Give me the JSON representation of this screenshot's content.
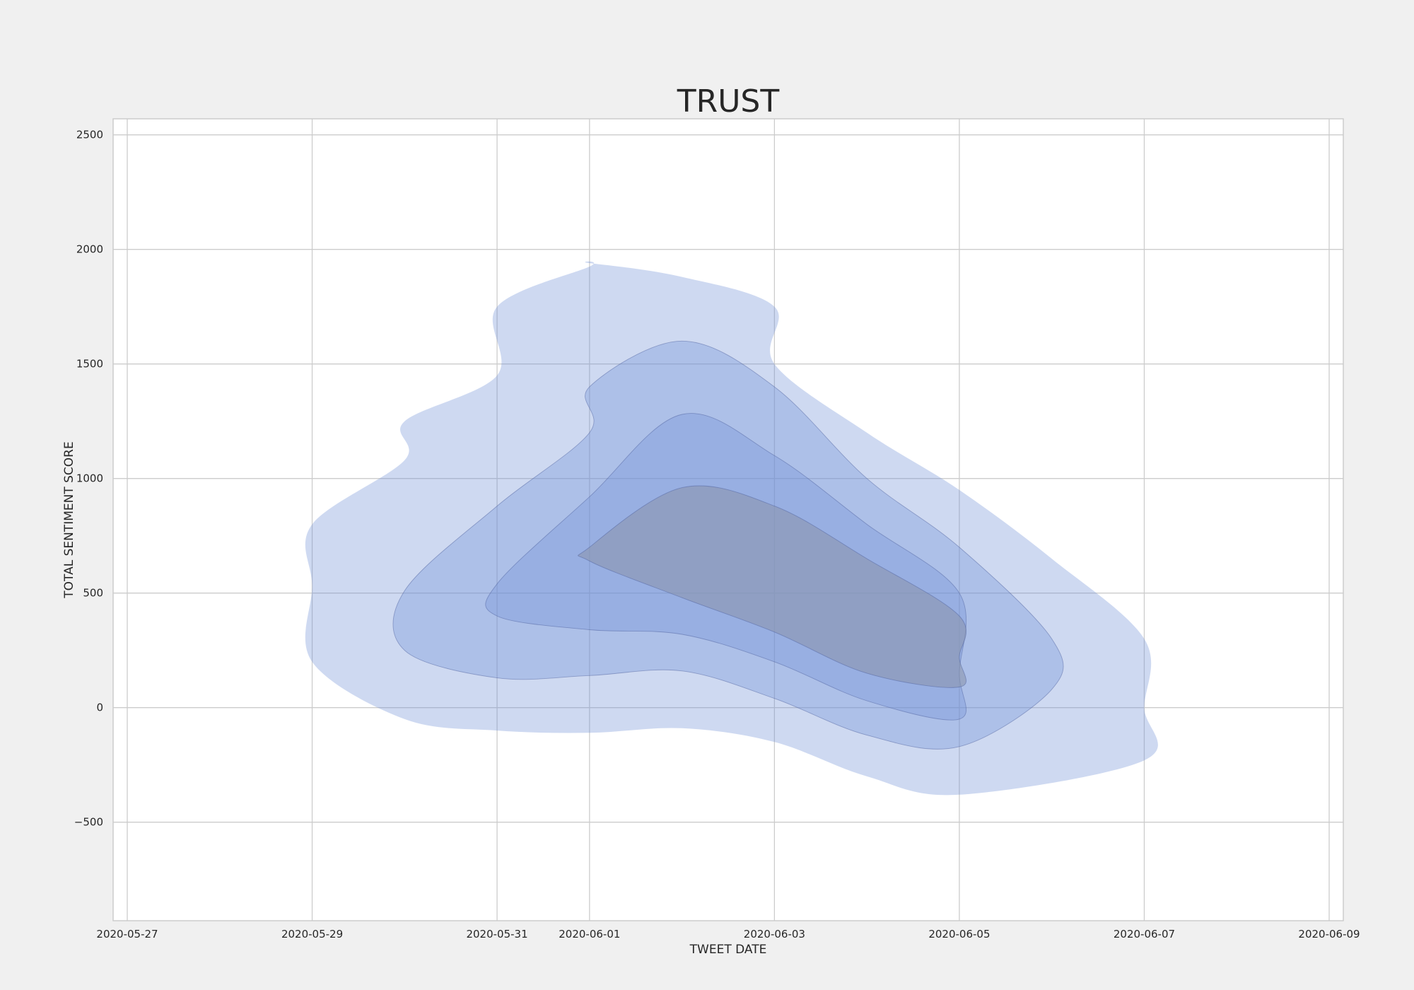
{
  "chart_data": {
    "type": "kde-contour",
    "title": "TRUST",
    "xlabel": "TWEET DATE",
    "ylabel": "TOTAL SENTIMENT SCORE",
    "x_ticks": [
      "2020-05-27",
      "2020-05-29",
      "2020-05-31",
      "2020-06-01",
      "2020-06-03",
      "2020-06-05",
      "2020-06-07",
      "2020-06-09"
    ],
    "y_ticks": [
      -500,
      0,
      500,
      1000,
      1500,
      2000,
      2500
    ],
    "y_tick_labels": [
      "−500",
      "0",
      "500",
      "1000",
      "1500",
      "2000",
      "2500"
    ],
    "xlim": [
      "2020-05-26",
      "2020-06-09"
    ],
    "ylim": [
      -930,
      2570
    ],
    "grid": true,
    "colors": {
      "background": "#f0f0f0",
      "plot_background": "#ffffff",
      "fill": "#6f8fd6",
      "inner_fill": "#8a96b0",
      "edge": "#4a5a9a"
    },
    "levels": [
      {
        "level": 1,
        "points": [
          [
            "2020-05-29",
            530
          ],
          [
            "2020-05-29",
            800
          ],
          [
            "2020-05-30",
            1080
          ],
          [
            "2020-05-30",
            1250
          ],
          [
            "2020-05-31",
            1450
          ],
          [
            "2020-05-31",
            1750
          ],
          [
            "2020-06-01",
            1925
          ],
          [
            "2020-06-01",
            1940
          ],
          [
            "2020-06-02",
            1880
          ],
          [
            "2020-06-03",
            1750
          ],
          [
            "2020-06-03",
            1500
          ],
          [
            "2020-06-04",
            1200
          ],
          [
            "2020-06-05",
            950
          ],
          [
            "2020-06-06",
            650
          ],
          [
            "2020-06-07",
            300
          ],
          [
            "2020-06-07",
            0
          ],
          [
            "2020-06-07",
            -230
          ],
          [
            "2020-06-05",
            -380
          ],
          [
            "2020-06-04",
            -300
          ],
          [
            "2020-06-03",
            -150
          ],
          [
            "2020-06-02",
            -90
          ],
          [
            "2020-06-01",
            -110
          ],
          [
            "2020-05-31",
            -100
          ],
          [
            "2020-05-30",
            -50
          ],
          [
            "2020-05-29",
            200
          ]
        ]
      },
      {
        "level": 2,
        "points": [
          [
            "2020-05-30",
            510
          ],
          [
            "2020-05-31",
            880
          ],
          [
            "2020-06-01",
            1200
          ],
          [
            "2020-06-01",
            1400
          ],
          [
            "2020-06-02",
            1600
          ],
          [
            "2020-06-03",
            1400
          ],
          [
            "2020-06-04",
            1000
          ],
          [
            "2020-06-05",
            700
          ],
          [
            "2020-06-06",
            300
          ],
          [
            "2020-06-06",
            80
          ],
          [
            "2020-06-05",
            -170
          ],
          [
            "2020-06-04",
            -120
          ],
          [
            "2020-06-03",
            40
          ],
          [
            "2020-06-02",
            160
          ],
          [
            "2020-06-01",
            140
          ],
          [
            "2020-05-31",
            130
          ],
          [
            "2020-05-30",
            250
          ]
        ]
      },
      {
        "level": 3,
        "points": [
          [
            "2020-05-31",
            540
          ],
          [
            "2020-06-01",
            920
          ],
          [
            "2020-06-02",
            1280
          ],
          [
            "2020-06-03",
            1100
          ],
          [
            "2020-06-04",
            800
          ],
          [
            "2020-06-05",
            500
          ],
          [
            "2020-06-05",
            150
          ],
          [
            "2020-06-05",
            -50
          ],
          [
            "2020-06-04",
            30
          ],
          [
            "2020-06-03",
            200
          ],
          [
            "2020-06-02",
            320
          ],
          [
            "2020-06-01",
            340
          ],
          [
            "2020-05-31",
            400
          ]
        ]
      },
      {
        "level": 4,
        "points": [
          [
            "2020-06-01",
            700
          ],
          [
            "2020-06-02",
            960
          ],
          [
            "2020-06-03",
            880
          ],
          [
            "2020-06-04",
            650
          ],
          [
            "2020-06-05",
            400
          ],
          [
            "2020-06-05",
            220
          ],
          [
            "2020-06-05",
            90
          ],
          [
            "2020-06-04",
            150
          ],
          [
            "2020-06-03",
            330
          ],
          [
            "2020-06-02",
            480
          ],
          [
            "2020-06-01",
            640
          ]
        ]
      }
    ]
  }
}
